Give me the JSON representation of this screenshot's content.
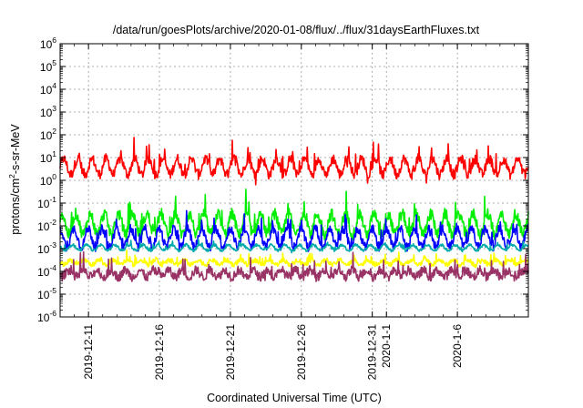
{
  "chart_data": {
    "type": "line",
    "title": "/data/run/goesPlots/archive/2020-01-08/flux/../flux/31daysEarthFluxes.txt",
    "xlabel": "Coordinated Universal Time (UTC)",
    "ylabel": {
      "prefix": "protons/cm",
      "sup": "2",
      "suffix": "-s-sr-MeV"
    },
    "yscale": "log",
    "ylim_exp": [
      -6,
      6
    ],
    "ytick_exps": [
      -6,
      -5,
      -4,
      -3,
      -2,
      -1,
      0,
      1,
      2,
      3,
      4,
      5,
      6
    ],
    "ytick_base": "10",
    "x_range_days": [
      -2,
      31
    ],
    "xticks": [
      {
        "label": "2019-12-11",
        "day": 0
      },
      {
        "label": "2019-12-16",
        "day": 5
      },
      {
        "label": "2019-12-21",
        "day": 10
      },
      {
        "label": "2019-12-26",
        "day": 15
      },
      {
        "label": "2019-12-31",
        "day": 20
      },
      {
        "label": "2020-1-1",
        "day": 21
      },
      {
        "label": "2020-1-6",
        "day": 26
      }
    ],
    "grid": true,
    "series": [
      {
        "color": "#ff0000",
        "base": 4.0,
        "daily_amp": 0.35,
        "noise": 0.22
      },
      {
        "color": "#00ee00",
        "base": 0.012,
        "daily_amp": 0.45,
        "noise": 0.25
      },
      {
        "color": "#0000ff",
        "base": 0.003,
        "daily_amp": 0.4,
        "noise": 0.2
      },
      {
        "color": "#00aaaa",
        "base": 0.0011,
        "daily_amp": 0.12,
        "noise": 0.06
      },
      {
        "color": "#ffff00",
        "base": 0.00025,
        "daily_amp": 0.1,
        "noise": 0.1
      },
      {
        "color": "#993366",
        "base": 8e-05,
        "daily_amp": 0.15,
        "noise": 0.2
      }
    ]
  }
}
